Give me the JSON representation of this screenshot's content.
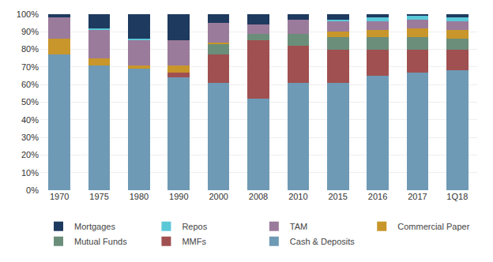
{
  "chart_data": {
    "type": "bar",
    "stacked": true,
    "categories": [
      "1970",
      "1975",
      "1980",
      "1990",
      "2000",
      "2008",
      "2010",
      "2015",
      "2016",
      "2017",
      "1Q18"
    ],
    "series": [
      {
        "name": "Cash & Deposits",
        "color": "#6e9ab5",
        "values": [
          77,
          71,
          69,
          64,
          61,
          52,
          61,
          61,
          65,
          67,
          68
        ]
      },
      {
        "name": "MMFs",
        "color": "#a05050",
        "values": [
          0,
          0,
          0,
          3,
          16,
          33,
          21,
          19,
          15,
          13,
          12
        ]
      },
      {
        "name": "Mutual Funds",
        "color": "#6b8e7a",
        "values": [
          0,
          0,
          0,
          0,
          6,
          4,
          7,
          7,
          7,
          7,
          6
        ]
      },
      {
        "name": "Commercial Paper",
        "color": "#c8962a",
        "values": [
          9,
          4,
          2,
          4,
          1,
          0,
          0,
          3,
          4,
          5,
          5
        ]
      },
      {
        "name": "TAM",
        "color": "#9b7b9b",
        "values": [
          12,
          16,
          14,
          14,
          11,
          5,
          8,
          6,
          5,
          5,
          5
        ]
      },
      {
        "name": "Repos",
        "color": "#5bc8d8",
        "values": [
          0,
          1,
          1,
          0,
          0,
          0,
          0,
          1,
          2,
          2,
          2
        ]
      },
      {
        "name": "Mortgages",
        "color": "#1e3a5f",
        "values": [
          2,
          8,
          14,
          15,
          5,
          6,
          3,
          3,
          2,
          1,
          2
        ]
      }
    ],
    "ylim": [
      0,
      100
    ],
    "yticks": [
      {
        "value": 0,
        "label": "0%"
      },
      {
        "value": 10,
        "label": "10%"
      },
      {
        "value": 20,
        "label": "20%"
      },
      {
        "value": 30,
        "label": "30%"
      },
      {
        "value": 40,
        "label": "40%"
      },
      {
        "value": 50,
        "label": "50%"
      },
      {
        "value": 60,
        "label": "60%"
      },
      {
        "value": 70,
        "label": "70%"
      },
      {
        "value": 80,
        "label": "80%"
      },
      {
        "value": 90,
        "label": "90%"
      },
      {
        "value": 100,
        "label": "100%"
      }
    ],
    "grid": true,
    "legend": "bottom"
  }
}
